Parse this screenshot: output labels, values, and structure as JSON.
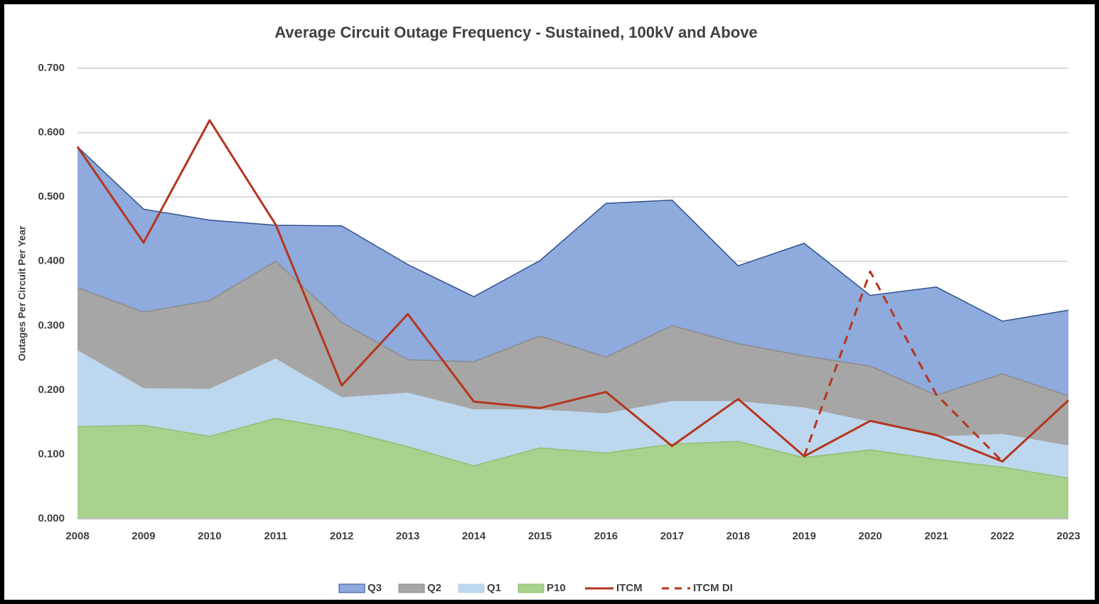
{
  "chart_data": {
    "type": "area",
    "title": "Average Circuit Outage Frequency - Sustained, 100kV and Above",
    "y_label": "Outages Per Circuit Per Year",
    "categories": [
      "2008",
      "2009",
      "2010",
      "2011",
      "2012",
      "2013",
      "2014",
      "2015",
      "2016",
      "2017",
      "2018",
      "2019",
      "2020",
      "2021",
      "2022",
      "2023"
    ],
    "series": [
      {
        "name": "Q3",
        "kind": "area",
        "color": "#8faadc",
        "edge": "#2f528f",
        "values": [
          0.578,
          0.481,
          0.464,
          0.456,
          0.455,
          0.395,
          0.345,
          0.401,
          0.49,
          0.495,
          0.393,
          0.428,
          0.347,
          0.36,
          0.307,
          0.324
        ]
      },
      {
        "name": "Q2",
        "kind": "area",
        "color": "#a6a6a6",
        "edge": "#8c8c8c",
        "values": [
          0.359,
          0.321,
          0.339,
          0.4,
          0.305,
          0.247,
          0.244,
          0.284,
          0.251,
          0.3,
          0.272,
          0.253,
          0.237,
          0.192,
          0.225,
          0.191
        ]
      },
      {
        "name": "Q1",
        "kind": "area",
        "color": "#bdd7ee",
        "edge": "#bdd7ee",
        "values": [
          0.261,
          0.202,
          0.201,
          0.248,
          0.188,
          0.195,
          0.169,
          0.169,
          0.163,
          0.182,
          0.182,
          0.172,
          0.15,
          0.127,
          0.131,
          0.113
        ]
      },
      {
        "name": "P10",
        "kind": "area",
        "color": "#a9d18e",
        "edge": "#8fbf70",
        "values": [
          0.143,
          0.145,
          0.128,
          0.156,
          0.138,
          0.112,
          0.082,
          0.11,
          0.102,
          0.116,
          0.12,
          0.095,
          0.107,
          0.092,
          0.08,
          0.063
        ]
      },
      {
        "name": "ITCM",
        "kind": "line",
        "color": "#b5351d",
        "dashed": false,
        "values": [
          0.578,
          0.429,
          0.619,
          0.457,
          0.207,
          0.318,
          0.182,
          0.172,
          0.197,
          0.113,
          0.186,
          0.097,
          0.152,
          0.13,
          0.089,
          0.184
        ]
      },
      {
        "name": "ITCM DI",
        "kind": "line",
        "color": "#b5351d",
        "dashed": true,
        "values": [
          null,
          null,
          null,
          null,
          null,
          null,
          null,
          null,
          null,
          null,
          null,
          0.097,
          0.384,
          0.193,
          0.089,
          null
        ]
      }
    ],
    "ylim": [
      0,
      0.7
    ],
    "yticks": [
      {
        "value": 0,
        "label": "0.000"
      },
      {
        "value": 0.1,
        "label": "0.100"
      },
      {
        "value": 0.2,
        "label": "0.200"
      },
      {
        "value": 0.3,
        "label": "0.300"
      },
      {
        "value": 0.4,
        "label": "0.400"
      },
      {
        "value": 0.5,
        "label": "0.500"
      },
      {
        "value": 0.6,
        "label": "0.600"
      },
      {
        "value": 0.7,
        "label": "0.700"
      }
    ],
    "grid": true,
    "legend": "bottom"
  }
}
